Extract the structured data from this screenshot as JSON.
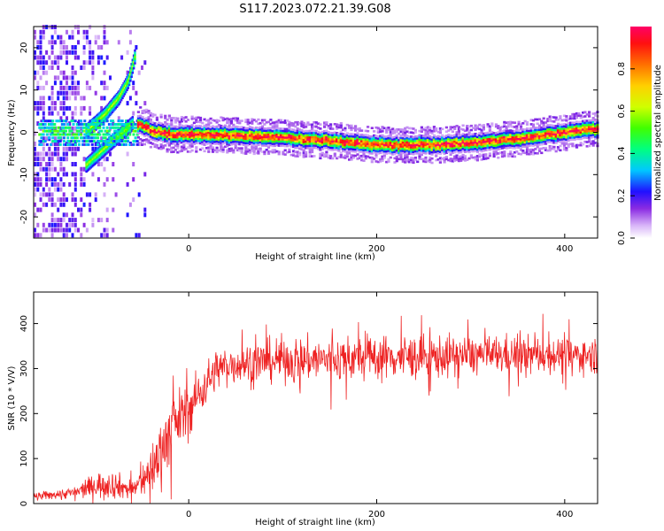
{
  "title": "S117.2023.072.21.39.G08",
  "chart_data": [
    {
      "type": "heatmap",
      "xlabel": "Height of straight line (km)",
      "ylabel": "Frequency (Hz)",
      "xlim": [
        -165,
        435
      ],
      "ylim": [
        -25,
        25
      ],
      "xticks": [
        0,
        200,
        400
      ],
      "yticks": [
        -20,
        -10,
        0,
        10,
        20
      ],
      "colorbar": {
        "label": "Normalized spectral amplitude",
        "ticks": [
          0.0,
          0.2,
          0.4,
          0.6,
          0.8
        ],
        "range": [
          0,
          1
        ]
      },
      "ridge": {
        "x": [
          -55,
          -40,
          -20,
          0,
          50,
          100,
          150,
          200,
          250,
          300,
          350,
          400,
          435
        ],
        "y": [
          2,
          0.5,
          -0.5,
          -0.5,
          -0.8,
          -1.2,
          -2,
          -3,
          -3,
          -2.5,
          -1.5,
          0,
          1
        ]
      },
      "early_traces": [
        {
          "x": [
            -110,
            -90,
            -75,
            -65,
            -60,
            -58
          ],
          "y": [
            0,
            4,
            8,
            12,
            16,
            18
          ]
        },
        {
          "x": [
            -110,
            -95,
            -80,
            -70,
            -60
          ],
          "y": [
            -8,
            -5,
            -2,
            0,
            2
          ]
        }
      ]
    },
    {
      "type": "line",
      "color": "#ee2222",
      "xlabel": "Height of straight line (km)",
      "ylabel": "SNR (10 * V/V)",
      "xlim": [
        -165,
        435
      ],
      "ylim": [
        0,
        470
      ],
      "xticks": [
        0,
        200,
        400
      ],
      "yticks": [
        0,
        100,
        200,
        300,
        400
      ],
      "envelope": {
        "x": [
          -165,
          -120,
          -100,
          -85,
          -60,
          -45,
          -35,
          -30,
          -20,
          -10,
          0,
          10,
          20,
          30,
          50,
          100,
          150,
          200,
          250,
          300,
          350,
          400,
          435
        ],
        "mean": [
          15,
          25,
          40,
          45,
          30,
          60,
          90,
          120,
          160,
          190,
          210,
          240,
          270,
          300,
          310,
          320,
          320,
          325,
          325,
          330,
          330,
          330,
          330
        ],
        "spread": [
          8,
          12,
          25,
          30,
          20,
          40,
          60,
          70,
          65,
          60,
          55,
          50,
          45,
          40,
          40,
          45,
          45,
          45,
          45,
          40,
          40,
          35,
          35
        ]
      }
    }
  ]
}
